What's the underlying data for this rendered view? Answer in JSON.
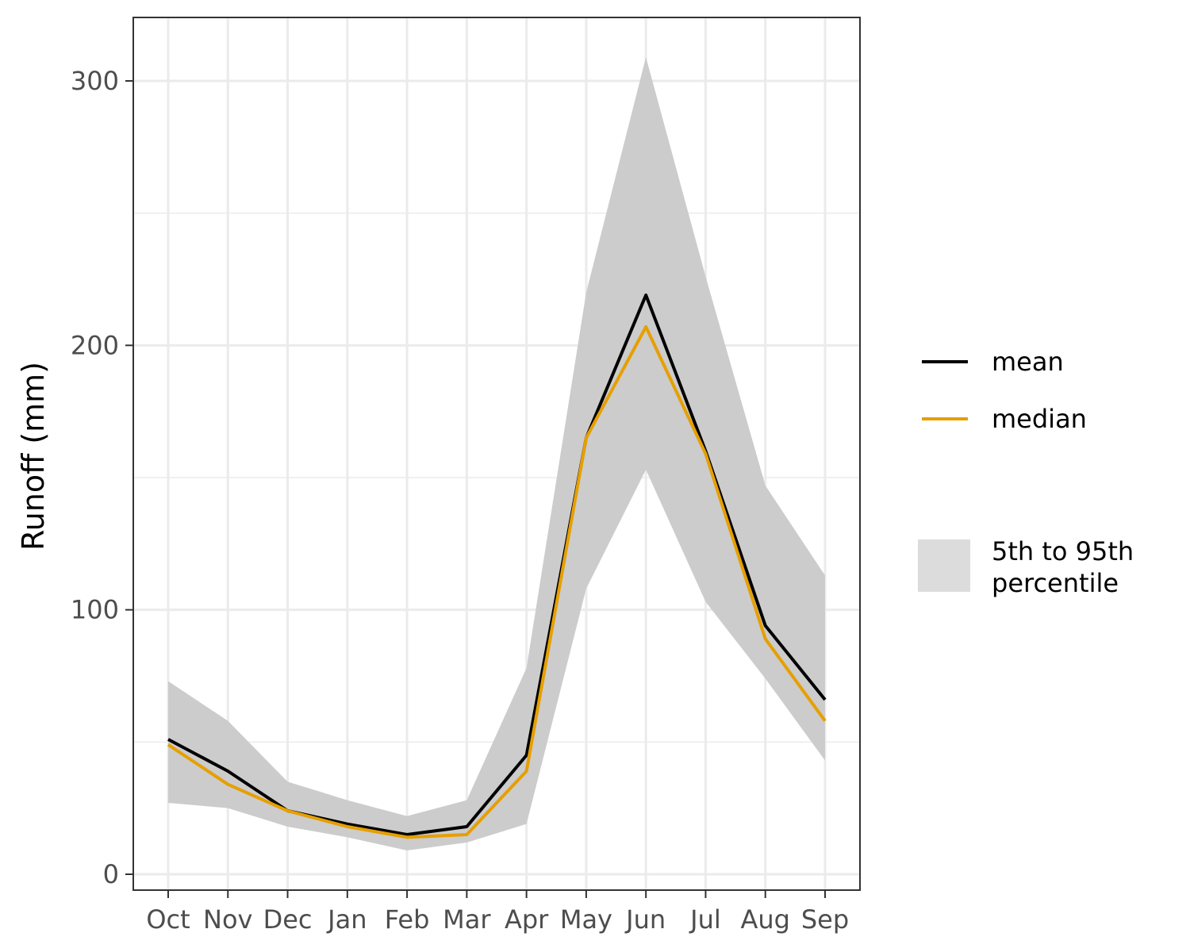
{
  "chart_data": {
    "type": "line",
    "title": "",
    "xlabel": "",
    "ylabel": "Runoff (mm)",
    "categories": [
      "Oct",
      "Nov",
      "Dec",
      "Jan",
      "Feb",
      "Mar",
      "Apr",
      "May",
      "Jun",
      "Jul",
      "Aug",
      "Sep"
    ],
    "ylim": [
      -6,
      324
    ],
    "yticks": [
      0,
      100,
      200,
      300
    ],
    "grid": true,
    "legend_position": "right",
    "series": [
      {
        "name": "mean",
        "color": "#000000",
        "values": [
          51,
          39,
          24,
          19,
          15,
          18,
          45,
          165,
          219,
          160,
          94,
          66
        ]
      },
      {
        "name": "median",
        "color": "#E69F00",
        "values": [
          49,
          34,
          24,
          18,
          14,
          15,
          39,
          165,
          207,
          159,
          89,
          58
        ]
      }
    ],
    "band": {
      "label_lines": [
        "5th to 95th",
        "percentile"
      ],
      "color": "#cccccc",
      "lower": [
        27,
        25,
        18,
        14,
        9,
        12,
        19,
        108,
        153,
        103,
        74,
        43
      ],
      "upper": [
        73,
        58,
        35,
        28,
        22,
        28,
        78,
        220,
        309,
        226,
        147,
        113
      ]
    }
  }
}
